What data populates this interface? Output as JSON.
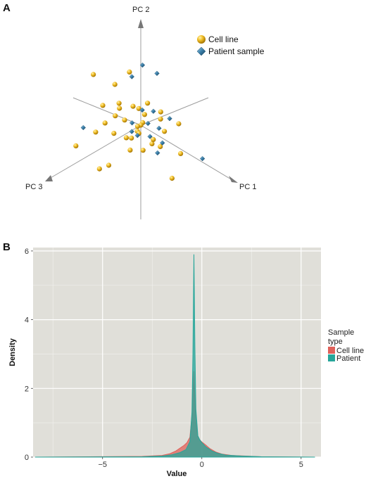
{
  "panels": {
    "a_label": "A",
    "b_label": "B"
  },
  "colors": {
    "cell_line": "#e8b21a",
    "patient_3d": "#2f6f93",
    "density_cell_line": "#e0615a",
    "density_patient": "#26a69a",
    "panel_bg": "#e0dfd9",
    "grid": "#ffffff"
  },
  "chart_data": [
    {
      "type": "scatter",
      "projection": "3d",
      "axes": [
        "PC 1",
        "PC 2",
        "PC 3"
      ],
      "legend": {
        "placement": "top-right",
        "entries": [
          {
            "label": "Cell line",
            "icon": "sphere-icon"
          },
          {
            "label": "Patient sample",
            "icon": "diamond-icon"
          }
        ]
      },
      "series": [
        {
          "name": "Cell line",
          "points": [
            [
              -0.3,
              0.6,
              -0.2
            ],
            [
              0.2,
              0.3,
              0.1
            ],
            [
              -1.5,
              0.5,
              0.6
            ],
            [
              -0.8,
              -1.3,
              -0.3
            ],
            [
              1.9,
              -1.6,
              0.2
            ],
            [
              -1.2,
              -2.4,
              1.1
            ],
            [
              0.1,
              -0.1,
              0.3
            ],
            [
              -0.5,
              0.2,
              0.4
            ],
            [
              0.6,
              0.4,
              -0.5
            ],
            [
              -0.2,
              -0.6,
              -0.1
            ],
            [
              0.9,
              -0.3,
              0.3
            ],
            [
              -1.0,
              0.1,
              -0.6
            ],
            [
              0.4,
              0.9,
              0.2
            ],
            [
              -0.7,
              -0.4,
              0.8
            ],
            [
              0.3,
              -0.8,
              -0.4
            ],
            [
              -0.4,
              0.5,
              -0.8
            ],
            [
              1.1,
              0.2,
              -0.2
            ],
            [
              -0.9,
              0.8,
              0.3
            ],
            [
              0.0,
              0.0,
              0.0
            ],
            [
              -0.6,
              -0.9,
              0.2
            ],
            [
              0.7,
              -0.6,
              0.6
            ],
            [
              -1.3,
              -0.2,
              0.1
            ],
            [
              0.5,
              0.6,
              0.7
            ],
            [
              -0.1,
              -1.1,
              0.5
            ],
            [
              -1.8,
              0.9,
              -0.4
            ],
            [
              1.4,
              0.5,
              -0.7
            ],
            [
              -0.3,
              1.2,
              0.9
            ],
            [
              0.8,
              1.0,
              -0.3
            ],
            [
              -1.6,
              -0.8,
              0.9
            ],
            [
              -2.2,
              -1.6,
              1.4
            ],
            [
              -0.5,
              -1.7,
              1.3
            ],
            [
              1.6,
              -0.9,
              -0.6
            ],
            [
              -2.4,
              1.4,
              0.2
            ],
            [
              -1.1,
              1.9,
              -0.5
            ],
            [
              0.2,
              -1.5,
              -0.9
            ],
            [
              -0.8,
              0.3,
              1.2
            ]
          ]
        },
        {
          "name": "Patient sample",
          "points": [
            [
              -0.2,
              2.6,
              0.3
            ],
            [
              0.5,
              2.8,
              -0.4
            ],
            [
              -0.1,
              3.0,
              -0.2
            ],
            [
              0.4,
              0.8,
              -0.3
            ],
            [
              0.2,
              0.1,
              -0.2
            ],
            [
              0.6,
              -0.2,
              0.1
            ],
            [
              -0.3,
              -0.4,
              0.2
            ],
            [
              0.9,
              0.3,
              -0.1
            ],
            [
              1.3,
              -0.5,
              0.4
            ],
            [
              0.1,
              0.5,
              0.6
            ],
            [
              0.7,
              -0.8,
              -0.5
            ],
            [
              -1.7,
              -0.3,
              1.5
            ],
            [
              2.6,
              -0.7,
              -0.8
            ],
            [
              0.3,
              -0.1,
              0.5
            ],
            [
              1.0,
              0.6,
              -0.6
            ],
            [
              -0.4,
              0.3,
              -0.5
            ]
          ]
        }
      ]
    },
    {
      "type": "area",
      "xlabel": "Value",
      "ylabel": "Density",
      "xlim": [
        -8.5,
        6.0
      ],
      "ylim": [
        0,
        6.1
      ],
      "x_ticks": [
        -5,
        0,
        5
      ],
      "x_tick_labels": [
        "−5",
        "0",
        "5"
      ],
      "y_ticks": [
        0,
        2,
        4,
        6
      ],
      "y_tick_labels": [
        "0",
        "2",
        "4",
        "6"
      ],
      "grid": true,
      "legend": {
        "placement": "right",
        "title_lines": [
          "Sample",
          "type"
        ],
        "entries": [
          "Cell line",
          "Patient"
        ]
      },
      "series": [
        {
          "name": "Cell line",
          "x": [
            -8.4,
            -3.0,
            -2.0,
            -1.6,
            -1.3,
            -1.1,
            -0.9,
            -0.75,
            -0.6,
            -0.5,
            -0.45,
            -0.4,
            -0.35,
            -0.3,
            -0.2,
            -0.1,
            0.0,
            0.2,
            0.4,
            0.7,
            1.0,
            1.5,
            2.2,
            3.0,
            5.7
          ],
          "y": [
            0.0,
            0.02,
            0.05,
            0.1,
            0.18,
            0.26,
            0.34,
            0.42,
            0.58,
            1.2,
            1.9,
            2.5,
            1.7,
            1.0,
            0.6,
            0.5,
            0.44,
            0.35,
            0.25,
            0.15,
            0.09,
            0.05,
            0.03,
            0.01,
            0.0
          ]
        },
        {
          "name": "Patient",
          "x": [
            -8.4,
            -3.0,
            -2.0,
            -1.5,
            -1.1,
            -0.8,
            -0.6,
            -0.5,
            -0.45,
            -0.4,
            -0.35,
            -0.3,
            -0.2,
            -0.1,
            0.0,
            0.2,
            0.5,
            0.8,
            1.2,
            2.0,
            3.0,
            5.7
          ],
          "y": [
            0.0,
            0.01,
            0.03,
            0.07,
            0.13,
            0.22,
            0.45,
            1.3,
            3.0,
            5.9,
            3.2,
            1.4,
            0.62,
            0.5,
            0.42,
            0.3,
            0.18,
            0.11,
            0.06,
            0.03,
            0.01,
            0.0
          ]
        }
      ]
    }
  ]
}
